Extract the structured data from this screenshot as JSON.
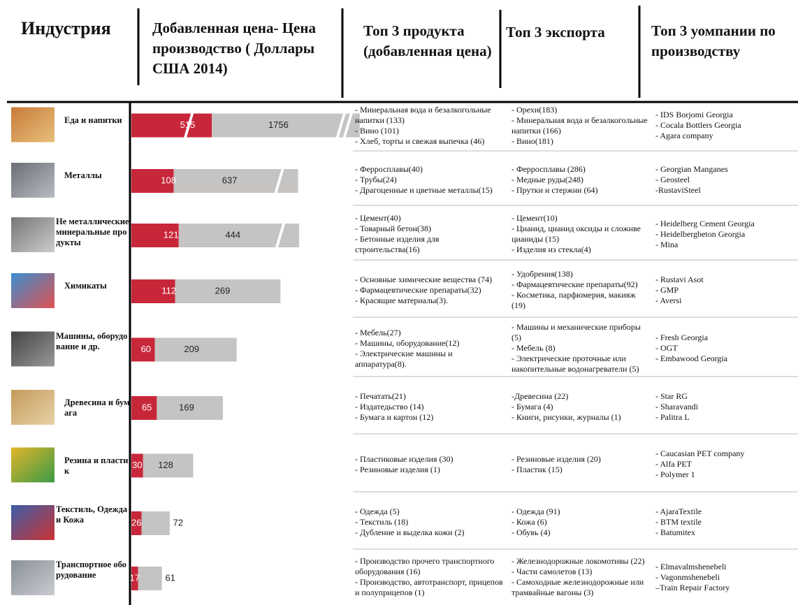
{
  "header": {
    "columns": [
      "Индустрия",
      "Добавленная цена- Цена производство ( Доллары США 2014)",
      "Топ 3 продукта (добавленная цена)",
      "Топ 3 экспорта",
      "Топ 3 уомпании по производству"
    ]
  },
  "rows": [
    {
      "industry": "Еда и напитки",
      "value_added": 515,
      "production": 1756,
      "products": [
        "- Минеральная вода и безалкогольные напитки (133)",
        "- Вино (101)",
        "- Хлеб, торты и свежая выпечка (46)"
      ],
      "exports": [
        "- Орехи(183)",
        "- Минеральная вода и безалкогольные напитки (166)",
        "- Вино(181)"
      ],
      "companies": [
        "- IDS Borjomi Georgia",
        "- Cocala Bottlers Georgia",
        "- Agara company"
      ]
    },
    {
      "industry": "Металлы",
      "value_added": 108,
      "production": 637,
      "products": [
        "- Ферросплавы(40)",
        "- Трубы(24)",
        "- Драгоценные и цветные металлы(15)"
      ],
      "exports": [
        "- Ферросплавы (286)",
        "- Медные руды(248)",
        "- Прутки и стержни (64)"
      ],
      "companies": [
        "- Georgian Manganes",
        "- Geosteel",
        "-RustaviSteel"
      ]
    },
    {
      "industry": "Не металлические минеральные продукты",
      "value_added": 121,
      "production": 444,
      "products": [
        "- Цемент(40)",
        "- Товарный бетон(38)",
        "- Бетонные изделия для строительства(16)"
      ],
      "exports": [
        "- Цемент(10)",
        "- Цианид, цианид оксиды и сложнве цианиды (15)",
        "- Изделия из стекла(4)"
      ],
      "companies": [
        "- Heidelberg Cement Georgia",
        "- Heidelbergbeton Georgia",
        "- Mina"
      ]
    },
    {
      "industry": "Химикаты",
      "value_added": 112,
      "production": 269,
      "products": [
        "- Основные химические вещества (74)",
        "- Фармацевтические препараты(32)",
        "-  Красящие материалы(3)."
      ],
      "exports": [
        "- Удобрения(138)",
        "- Фармацевтические препараты(92)",
        "- Косметика, парфюмерия, макияж (19)"
      ],
      "companies": [
        "- Rustavi Asot",
        "- GMP",
        "- Aversi"
      ]
    },
    {
      "industry": "Машины, оборудованне и др.",
      "value_added": 60,
      "production": 209,
      "products": [
        "- Мебель(27)",
        "- Машины, оборудование(12)",
        "- Электрические машины и аппаратура(8)."
      ],
      "exports": [
        "- Машины и механические приборы (5)",
        "- Мебель (8)",
        "- Электрические проточные или накопительные водонагреватели (5)"
      ],
      "companies": [
        "- Fresh Georgia",
        "- OGT",
        "- Embawood Georgia"
      ]
    },
    {
      "industry": "Древесина и бумага",
      "value_added": 65,
      "production": 169,
      "products": [
        "- Печатать(21)",
        "- Издатедьство (14)",
        "- Бумага и картон  (12)"
      ],
      "exports": [
        "-Древесина (22)",
        "- Бумага (4)",
        "- Книги, рисунки, журналы (1)"
      ],
      "companies": [
        "- Star RG",
        "- Sharavandi",
        "- Palitra L"
      ]
    },
    {
      "industry": "Резина и пластик",
      "value_added": 30,
      "production": 128,
      "products": [
        "- Пластиковые изделия (30)",
        "- Резиновые изделия  (1)"
      ],
      "exports": [
        "- Резиновые изделия (20)",
        "- Пластик (15)"
      ],
      "companies": [
        "- Caucasian PET company",
        "- Alfa PET",
        "- Polymer 1"
      ]
    },
    {
      "industry": "Текстиль, Одежда и Кожа",
      "value_added": 26,
      "production": 72,
      "products": [
        "- Одежда (5)",
        "- Текстиль (18)",
        "- Дубление и выделка кожи (2)"
      ],
      "exports": [
        "- Одежда (91)",
        "- Кожа (6)",
        "- Обувь (4)"
      ],
      "companies": [
        "- AjaraTextile",
        "- BTM textile",
        "- Batumitex"
      ]
    },
    {
      "industry": "Транспортное оборудование",
      "value_added": 17,
      "production": 61,
      "products": [
        "- Производство прочего транспортного оборудования (16)",
        "- Производство, автотранспорт, прицепов и полуприцепов (1)"
      ],
      "exports": [
        "- Железнодорожные локомотивы (22)",
        "- Части самолетов (13)",
        "- Самоходные железнодорожные или трамвайные вагоны (3)"
      ],
      "companies": [
        "- Elmavalmshenebeli",
        "- Vagonmshenebeli",
        "–Train Repair Factory"
      ]
    }
  ]
}
